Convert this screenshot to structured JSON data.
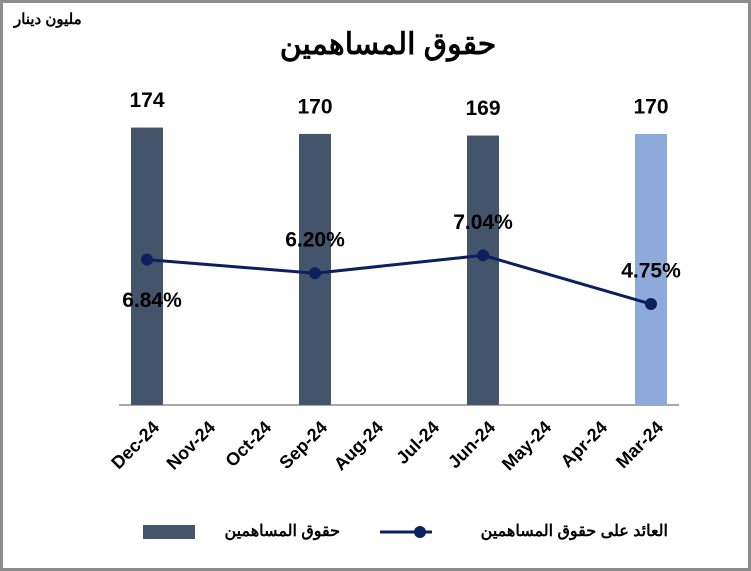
{
  "chart_data": {
    "type": "bar_line",
    "title": "حقوق المساهمين",
    "unit_label": "مليون دينار",
    "categories": [
      "Dec-24",
      "Nov-24",
      "Oct-24",
      "Sep-24",
      "Aug-24",
      "Jul-24",
      "Jun-24",
      "May-24",
      "Apr-24",
      "Mar-24"
    ],
    "series": [
      {
        "name": "حقوق المساهمين",
        "type": "bar",
        "color": "#44546a",
        "colors": [
          "#44546a",
          null,
          null,
          "#44546a",
          null,
          null,
          "#44546a",
          null,
          null,
          "#8eaadb"
        ],
        "values": [
          174,
          null,
          null,
          170,
          null,
          null,
          169,
          null,
          null,
          170
        ]
      },
      {
        "name": "العائد على حقوق المساهمين",
        "type": "line",
        "axis": "y2",
        "color": "#0c2060",
        "span_gaps": true,
        "values": [
          6.84,
          null,
          null,
          6.2,
          null,
          null,
          7.04,
          null,
          null,
          4.75
        ],
        "value_labels": [
          "6.84%",
          null,
          null,
          "6.20%",
          null,
          null,
          "7.04%",
          null,
          null,
          "4.75%"
        ]
      }
    ],
    "ylim": [
      0,
      180
    ],
    "y2lim": [
      0,
      13.5
    ]
  }
}
